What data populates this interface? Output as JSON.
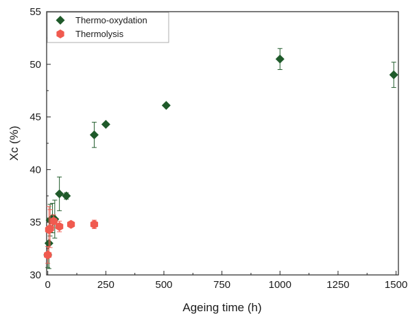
{
  "chart_data": {
    "type": "scatter",
    "xlabel": "Ageing time (h)",
    "ylabel": "Xc (%)",
    "xlim": [
      -5,
      1510
    ],
    "ylim": [
      30,
      55
    ],
    "xticks": [
      0,
      250,
      500,
      750,
      1000,
      1250,
      1500
    ],
    "yticks": [
      30,
      35,
      40,
      45,
      50,
      55
    ],
    "xminor": [
      125,
      375,
      625,
      875,
      1125,
      1375
    ],
    "yminor": [
      32.5,
      37.5,
      42.5,
      47.5,
      52.5
    ],
    "grid": false,
    "legend_position": "top-left",
    "series": [
      {
        "name": "Thermo-oxydation",
        "marker": "diamond",
        "color": "#1f5a2a",
        "points": [
          {
            "x": 0,
            "y": 31.9,
            "err": 1.2
          },
          {
            "x": 5,
            "y": 33.0,
            "err": 2.4
          },
          {
            "x": 10,
            "y": 35.2,
            "err": 1.5
          },
          {
            "x": 20,
            "y": 35.4,
            "err": 1.4
          },
          {
            "x": 30,
            "y": 35.3,
            "err": 1.8
          },
          {
            "x": 50,
            "y": 37.7,
            "err": 1.6
          },
          {
            "x": 80,
            "y": 37.5,
            "err": 0.3
          },
          {
            "x": 200,
            "y": 43.3,
            "err": 1.2
          },
          {
            "x": 250,
            "y": 44.3,
            "err": 0.0
          },
          {
            "x": 510,
            "y": 46.1,
            "err": 0.0
          },
          {
            "x": 1000,
            "y": 50.5,
            "err": 1.0
          },
          {
            "x": 1490,
            "y": 49.0,
            "err": 1.2
          }
        ]
      },
      {
        "name": "Thermolysis",
        "marker": "hexagon",
        "color": "#f05a4f",
        "points": [
          {
            "x": 0,
            "y": 31.9,
            "err": 0.8
          },
          {
            "x": 5,
            "y": 34.3,
            "err": 2.2
          },
          {
            "x": 10,
            "y": 34.4,
            "err": 1.8
          },
          {
            "x": 25,
            "y": 35.1,
            "err": 0.6
          },
          {
            "x": 50,
            "y": 34.6,
            "err": 0.5
          },
          {
            "x": 100,
            "y": 34.8,
            "err": 0.0
          },
          {
            "x": 200,
            "y": 34.8,
            "err": 0.4
          }
        ]
      }
    ]
  }
}
